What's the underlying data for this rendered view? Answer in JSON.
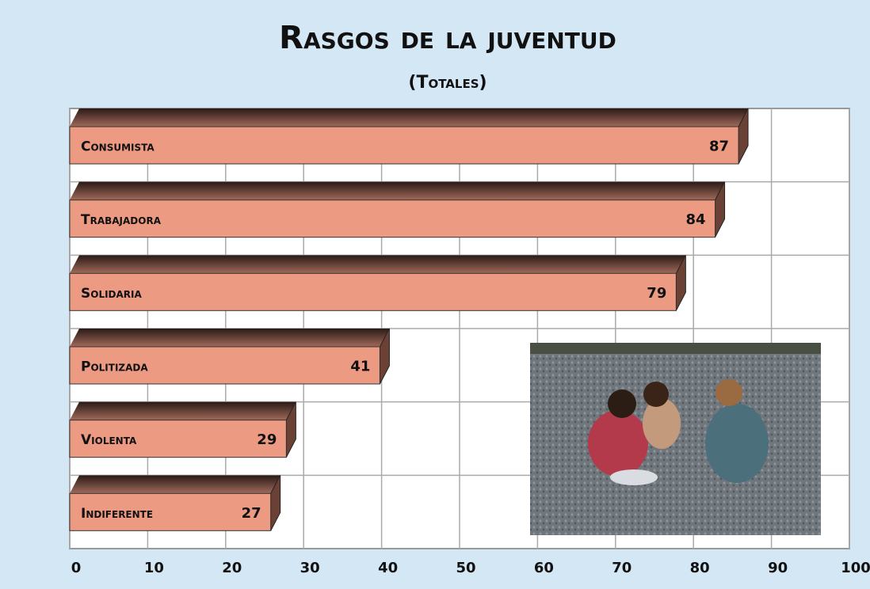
{
  "chart_data": {
    "type": "bar",
    "orientation": "horizontal",
    "title": "Rasgos de la juventud",
    "subtitle": "(Totales)",
    "categories": [
      "Consumista",
      "Trabajadora",
      "Solidaria",
      "Politizada",
      "Violenta",
      "Indiferente"
    ],
    "values": [
      87,
      84,
      79,
      41,
      29,
      27
    ],
    "color": "#ec9a82",
    "xlim": [
      0,
      100
    ],
    "xticks": [
      0,
      10,
      20,
      30,
      40,
      50,
      60,
      70,
      80,
      90,
      100
    ],
    "grid": true
  }
}
